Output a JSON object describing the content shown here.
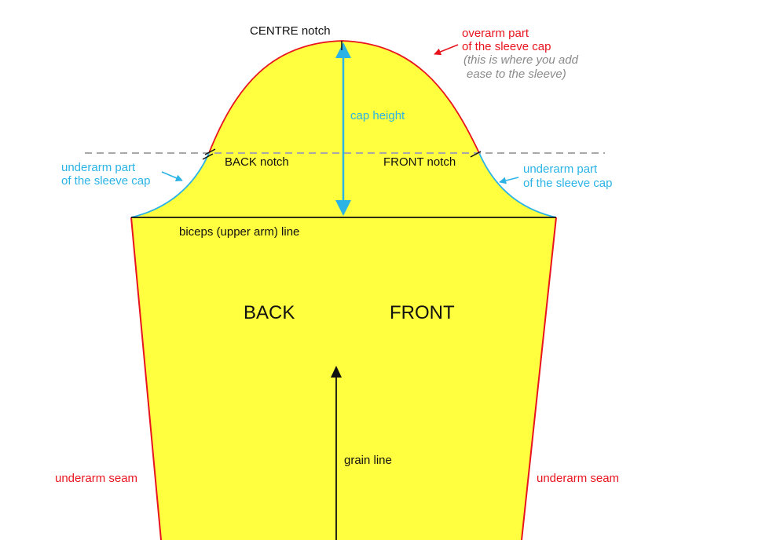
{
  "colors": {
    "fill": "#ffff3f",
    "red": "#e8141e",
    "blue": "#2bb3e6",
    "black": "#111111",
    "grey": "#8a8a8a",
    "dash": "#a8a8a8"
  },
  "labels": {
    "centre_notch": "CENTRE notch",
    "overarm_line1": "overarm part",
    "overarm_line2": "of the sleeve cap",
    "ease_line1": "(this is where you add",
    "ease_line2": "ease to the sleeve)",
    "cap_height": "cap height",
    "back_notch": "BACK notch",
    "front_notch": "FRONT notch",
    "underarm_left_line1": "underarm part",
    "underarm_left_line2": "of the sleeve cap",
    "underarm_right_line1": "underarm part",
    "underarm_right_line2": "of the sleeve cap",
    "biceps_line": "biceps (upper arm) line",
    "back": "BACK",
    "front": "FRONT",
    "grain_line": "grain line",
    "underarm_seam_left": "underarm seam",
    "underarm_seam_right": "underarm seam"
  }
}
